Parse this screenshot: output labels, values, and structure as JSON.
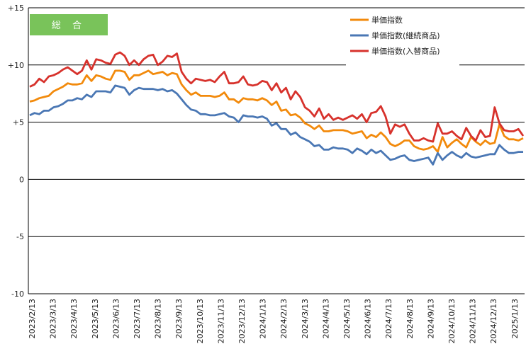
{
  "chart_data": {
    "type": "line",
    "badge": "総 合",
    "title": "",
    "xlabel": "",
    "ylabel": "",
    "ylim": [
      -10,
      15
    ],
    "ytick_labels": [
      "+15",
      "+10",
      "+5",
      "0",
      "-5",
      "-10"
    ],
    "grid": "horizontal",
    "legend_position": "top-right",
    "x_labels": [
      "2023/2/13",
      "2023/3/13",
      "2023/4/13",
      "2023/5/13",
      "2023/6/13",
      "2023/7/13",
      "2023/8/13",
      "2023/9/13",
      "2023/10/13",
      "2023/11/13",
      "2023/12/13",
      "2024/1/13",
      "2024/2/13",
      "2024/3/13",
      "2024/4/13",
      "2024/5/13",
      "2024/6/13",
      "2024/7/13",
      "2024/8/13",
      "2024/9/13",
      "2024/10/13",
      "2024/11/13",
      "2024/12/13",
      "2025/1/13"
    ],
    "series": [
      {
        "name": "単価指数",
        "color": "#F28A0C",
        "values": [
          6.8,
          6.9,
          7.1,
          7.2,
          7.3,
          7.7,
          7.9,
          8.1,
          8.4,
          8.3,
          8.3,
          8.4,
          9.1,
          8.6,
          9.1,
          9.0,
          8.8,
          8.7,
          9.5,
          9.5,
          9.4,
          8.7,
          9.1,
          9.1,
          9.3,
          9.5,
          9.2,
          9.3,
          9.4,
          9.1,
          9.3,
          9.2,
          8.3,
          7.8,
          7.4,
          7.6,
          7.3,
          7.3,
          7.3,
          7.2,
          7.3,
          7.6,
          7.0,
          7.0,
          6.7,
          7.1,
          7.0,
          7.0,
          6.9,
          7.1,
          6.9,
          6.5,
          6.8,
          6.0,
          6.1,
          5.6,
          5.7,
          5.4,
          4.9,
          4.7,
          4.4,
          4.7,
          4.2,
          4.2,
          4.3,
          4.3,
          4.3,
          4.2,
          4.0,
          4.1,
          4.2,
          3.6,
          3.9,
          3.7,
          4.1,
          3.7,
          3.1,
          2.9,
          3.1,
          3.4,
          3.4,
          2.9,
          2.7,
          2.6,
          2.7,
          2.9,
          2.4,
          3.7,
          2.8,
          3.2,
          3.5,
          3.1,
          2.8,
          3.7,
          3.3,
          3.0,
          3.4,
          3.1,
          3.2,
          4.8,
          3.8,
          3.5,
          3.5,
          3.4,
          3.6
        ]
      },
      {
        "name": "単価指数(継続商品)",
        "color": "#4A77B4",
        "values": [
          5.6,
          5.8,
          5.7,
          6.0,
          6.0,
          6.3,
          6.4,
          6.6,
          6.9,
          6.9,
          7.1,
          7.0,
          7.4,
          7.2,
          7.7,
          7.7,
          7.7,
          7.6,
          8.2,
          8.1,
          8.0,
          7.4,
          7.8,
          8.0,
          7.9,
          7.9,
          7.9,
          7.8,
          7.9,
          7.7,
          7.8,
          7.5,
          7.0,
          6.5,
          6.1,
          6.0,
          5.7,
          5.7,
          5.6,
          5.6,
          5.7,
          5.8,
          5.5,
          5.4,
          5.0,
          5.6,
          5.5,
          5.5,
          5.4,
          5.5,
          5.3,
          4.7,
          4.9,
          4.4,
          4.4,
          3.9,
          4.1,
          3.7,
          3.5,
          3.3,
          2.9,
          3.0,
          2.6,
          2.6,
          2.8,
          2.7,
          2.7,
          2.6,
          2.3,
          2.7,
          2.5,
          2.2,
          2.6,
          2.3,
          2.5,
          2.1,
          1.7,
          1.8,
          2.0,
          2.1,
          1.7,
          1.6,
          1.7,
          1.8,
          1.9,
          1.3,
          2.3,
          1.7,
          2.1,
          2.4,
          2.1,
          1.9,
          2.3,
          2.0,
          1.9,
          2.0,
          2.1,
          2.2,
          2.2,
          3.0,
          2.6,
          2.3,
          2.3,
          2.4,
          2.4
        ]
      },
      {
        "name": "単価指数(入替商品)",
        "color": "#D7322C",
        "values": [
          8.1,
          8.3,
          8.8,
          8.5,
          9.0,
          9.1,
          9.3,
          9.6,
          9.8,
          9.5,
          9.2,
          9.5,
          10.4,
          9.6,
          10.5,
          10.4,
          10.2,
          10.1,
          10.9,
          11.1,
          10.8,
          10.0,
          10.4,
          10.0,
          10.5,
          10.8,
          10.9,
          10.0,
          10.3,
          10.8,
          10.7,
          11.0,
          9.4,
          8.8,
          8.4,
          8.8,
          8.7,
          8.6,
          8.7,
          8.5,
          9.0,
          9.4,
          8.4,
          8.4,
          8.5,
          9.0,
          8.3,
          8.2,
          8.3,
          8.6,
          8.5,
          7.8,
          8.4,
          7.6,
          8.0,
          7.0,
          7.7,
          7.2,
          6.3,
          6.0,
          5.5,
          6.2,
          5.3,
          5.7,
          5.2,
          5.4,
          5.2,
          5.4,
          5.6,
          5.3,
          5.7,
          5.0,
          5.8,
          5.9,
          6.4,
          5.5,
          4.0,
          4.8,
          4.6,
          4.8,
          4.0,
          3.4,
          3.4,
          3.6,
          3.4,
          3.3,
          4.9,
          4.0,
          4.0,
          4.2,
          3.8,
          3.5,
          4.5,
          3.8,
          3.4,
          4.3,
          3.7,
          3.8,
          6.3,
          4.9,
          4.3,
          4.2,
          4.2,
          4.4,
          3.8
        ]
      }
    ]
  }
}
